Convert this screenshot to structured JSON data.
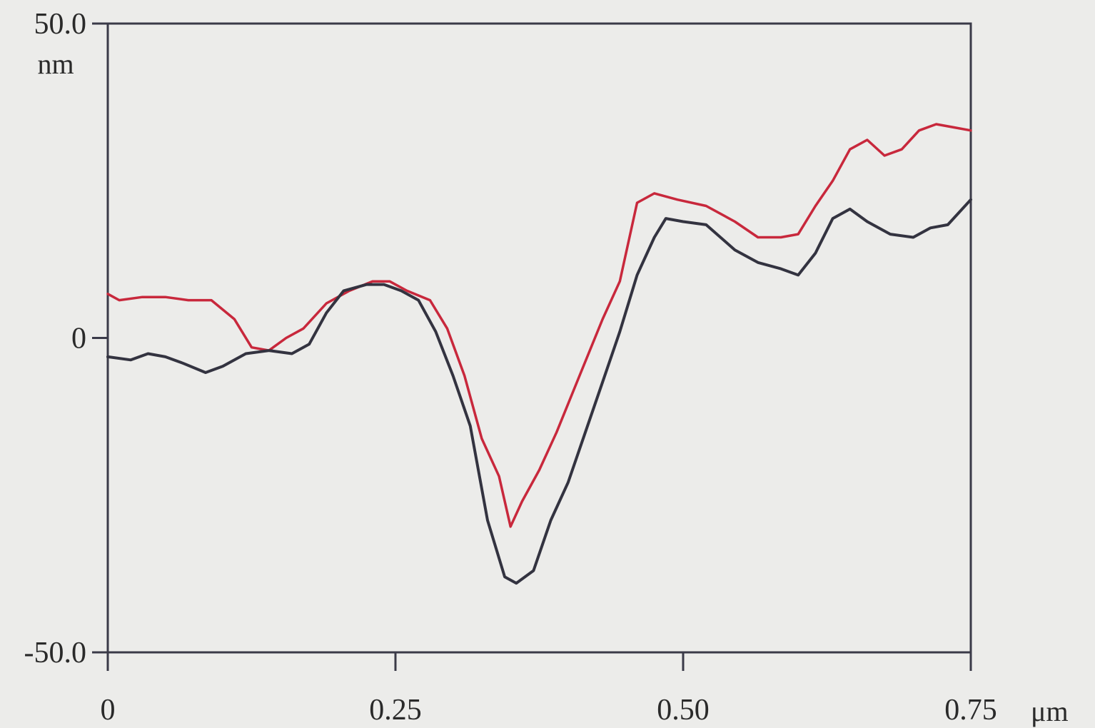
{
  "chart_data": {
    "type": "line",
    "xlabel": "μm",
    "ylabel": "nm",
    "xlim": [
      0,
      0.75
    ],
    "ylim": [
      -50.0,
      50.0
    ],
    "x_ticks": [
      {
        "value": 0,
        "label": "0"
      },
      {
        "value": 0.25,
        "label": "0.25"
      },
      {
        "value": 0.5,
        "label": "0.50"
      },
      {
        "value": 0.75,
        "label": "0.75"
      }
    ],
    "y_ticks": [
      {
        "value": 50,
        "label": "50.0"
      },
      {
        "value": 0,
        "label": "0"
      },
      {
        "value": -50,
        "label": "-50.0"
      }
    ],
    "grid": false,
    "legend": "none",
    "series": [
      {
        "color": "#c8283c",
        "points": [
          [
            0,
            7
          ],
          [
            0.01,
            6
          ],
          [
            0.03,
            6.5
          ],
          [
            0.05,
            6.5
          ],
          [
            0.07,
            6
          ],
          [
            0.09,
            6
          ],
          [
            0.11,
            3
          ],
          [
            0.125,
            -1.5
          ],
          [
            0.14,
            -2
          ],
          [
            0.155,
            0
          ],
          [
            0.17,
            1.5
          ],
          [
            0.19,
            5.5
          ],
          [
            0.21,
            7.5
          ],
          [
            0.23,
            9
          ],
          [
            0.245,
            9
          ],
          [
            0.26,
            7.5
          ],
          [
            0.28,
            6
          ],
          [
            0.295,
            1.5
          ],
          [
            0.31,
            -6
          ],
          [
            0.325,
            -16
          ],
          [
            0.34,
            -22
          ],
          [
            0.35,
            -30
          ],
          [
            0.36,
            -26
          ],
          [
            0.375,
            -21
          ],
          [
            0.39,
            -15
          ],
          [
            0.41,
            -6
          ],
          [
            0.43,
            3
          ],
          [
            0.445,
            9
          ],
          [
            0.46,
            21.5
          ],
          [
            0.475,
            23
          ],
          [
            0.495,
            22
          ],
          [
            0.52,
            21
          ],
          [
            0.545,
            18.5
          ],
          [
            0.565,
            16
          ],
          [
            0.585,
            16
          ],
          [
            0.6,
            16.5
          ],
          [
            0.615,
            21
          ],
          [
            0.63,
            25
          ],
          [
            0.645,
            30
          ],
          [
            0.66,
            31.5
          ],
          [
            0.675,
            29
          ],
          [
            0.69,
            30
          ],
          [
            0.705,
            33
          ],
          [
            0.72,
            34
          ],
          [
            0.735,
            33.5
          ],
          [
            0.75,
            33
          ]
        ]
      },
      {
        "color": "#333340",
        "points": [
          [
            0,
            -3
          ],
          [
            0.02,
            -3.5
          ],
          [
            0.035,
            -2.5
          ],
          [
            0.05,
            -3
          ],
          [
            0.065,
            -4
          ],
          [
            0.085,
            -5.5
          ],
          [
            0.1,
            -4.5
          ],
          [
            0.12,
            -2.5
          ],
          [
            0.14,
            -2
          ],
          [
            0.16,
            -2.5
          ],
          [
            0.175,
            -1
          ],
          [
            0.19,
            4
          ],
          [
            0.205,
            7.5
          ],
          [
            0.225,
            8.5
          ],
          [
            0.24,
            8.5
          ],
          [
            0.255,
            7.5
          ],
          [
            0.27,
            6
          ],
          [
            0.285,
            1
          ],
          [
            0.3,
            -6
          ],
          [
            0.315,
            -14
          ],
          [
            0.33,
            -29
          ],
          [
            0.345,
            -38
          ],
          [
            0.355,
            -39
          ],
          [
            0.37,
            -37
          ],
          [
            0.385,
            -29
          ],
          [
            0.4,
            -23
          ],
          [
            0.415,
            -15
          ],
          [
            0.43,
            -7
          ],
          [
            0.445,
            1
          ],
          [
            0.46,
            10
          ],
          [
            0.475,
            16
          ],
          [
            0.485,
            19
          ],
          [
            0.5,
            18.5
          ],
          [
            0.52,
            18
          ],
          [
            0.545,
            14
          ],
          [
            0.565,
            12
          ],
          [
            0.585,
            11
          ],
          [
            0.6,
            10
          ],
          [
            0.615,
            13.5
          ],
          [
            0.63,
            19
          ],
          [
            0.645,
            20.5
          ],
          [
            0.66,
            18.5
          ],
          [
            0.68,
            16.5
          ],
          [
            0.7,
            16
          ],
          [
            0.715,
            17.5
          ],
          [
            0.73,
            18
          ],
          [
            0.75,
            22
          ]
        ]
      }
    ]
  }
}
